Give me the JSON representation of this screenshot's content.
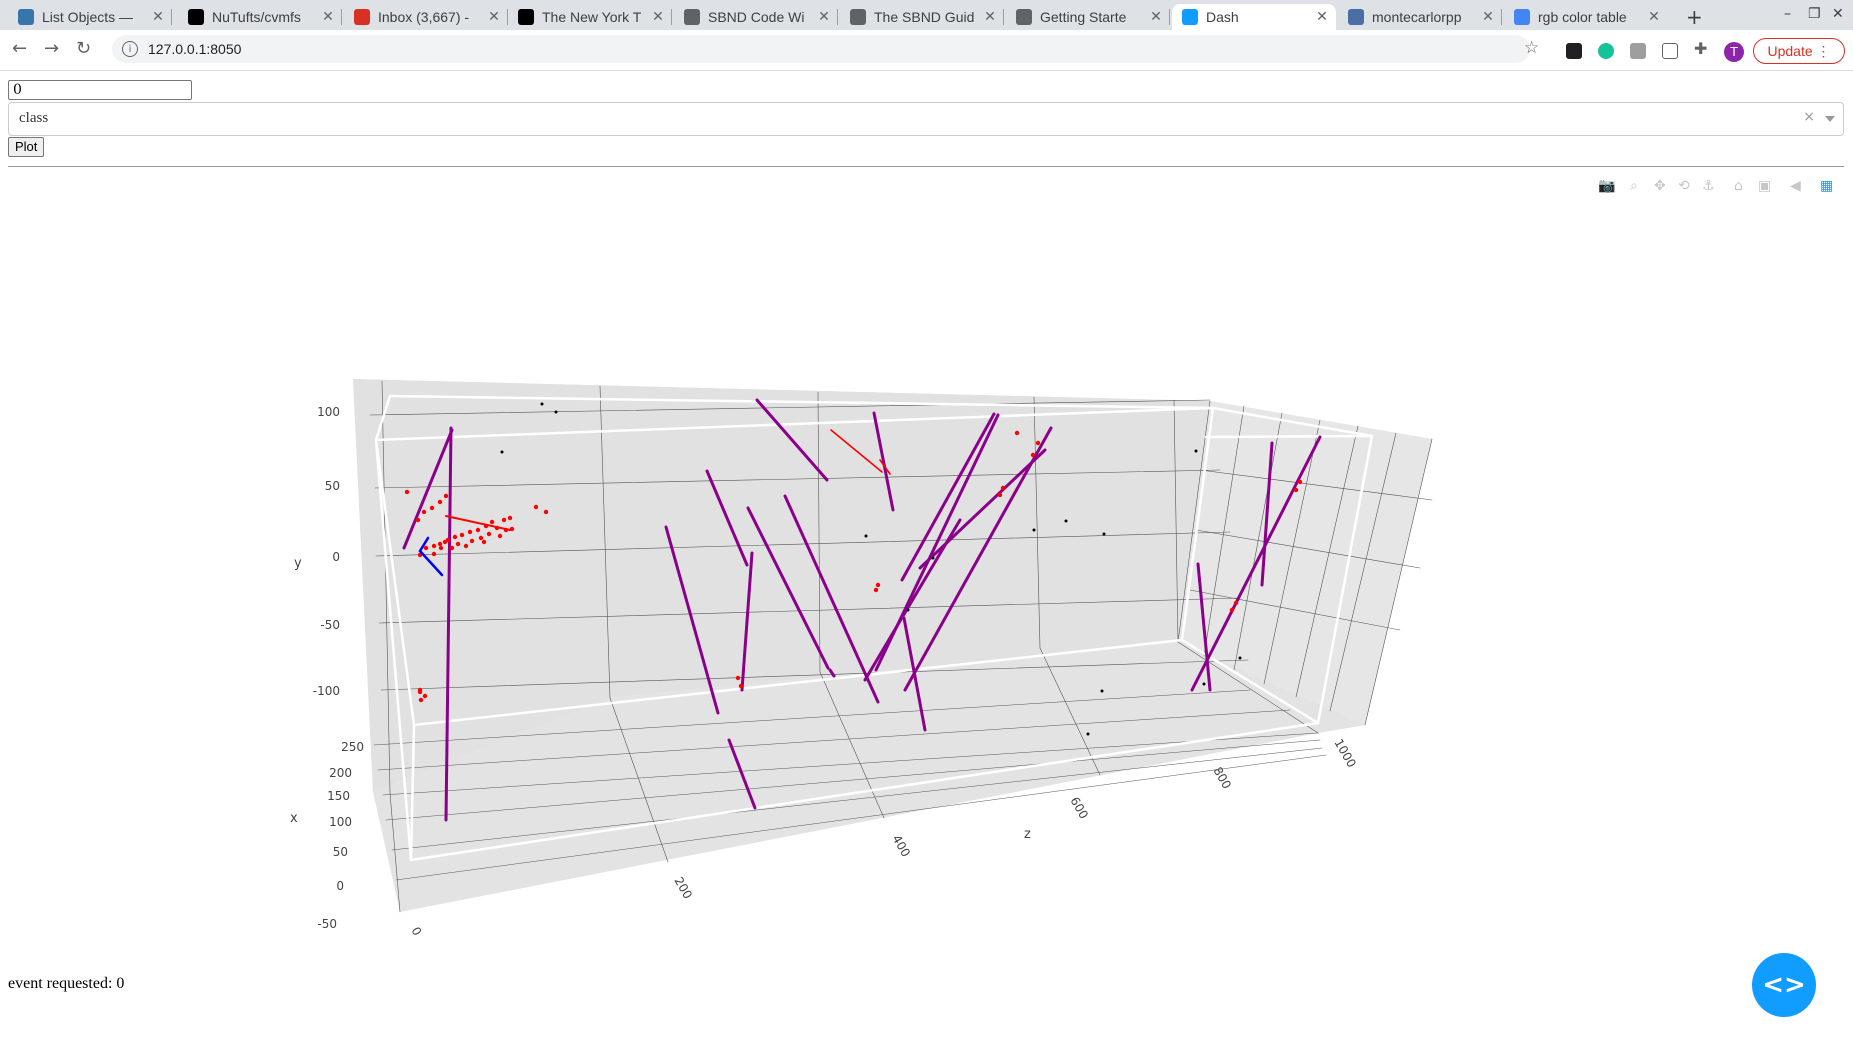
{
  "browser": {
    "tabs": [
      {
        "title": "List Objects —",
        "icon": "python-icon",
        "color": "#3776ab"
      },
      {
        "title": "NuTufts/cvmfs",
        "icon": "github-icon",
        "color": "#000000"
      },
      {
        "title": "Inbox (3,667) -",
        "icon": "gmail-icon",
        "color": "#d93025"
      },
      {
        "title": "The New York T",
        "icon": "nyt-icon",
        "color": "#000000"
      },
      {
        "title": "SBND Code Wi",
        "icon": "wiki-icon",
        "color": "#5f6368"
      },
      {
        "title": "The SBND Guid",
        "icon": "wiki-icon",
        "color": "#5f6368"
      },
      {
        "title": "Getting Starte",
        "icon": "doc-icon",
        "color": "#5f6368"
      },
      {
        "title": "Dash",
        "icon": "dash-icon",
        "color": "#119dff"
      },
      {
        "title": "montecarlorpp",
        "icon": "pdg-icon",
        "color": "#4a6fa5"
      },
      {
        "title": "rgb color table",
        "icon": "google-icon",
        "color": "#4285f4"
      }
    ],
    "url": "127.0.0.1:8050",
    "update_label": "Update",
    "avatar_letter": "T"
  },
  "controls": {
    "event_value": "0",
    "dropdown_value": "class",
    "plot_label": "Plot"
  },
  "chart_data": {
    "type": "scatter3d",
    "axes": {
      "x": {
        "label": "x",
        "ticks": [
          "-50",
          "0",
          "50",
          "100",
          "150",
          "200",
          "250"
        ],
        "range": [
          -50,
          250
        ]
      },
      "y": {
        "label": "y",
        "ticks": [
          "-100",
          "-50",
          "0",
          "50",
          "100"
        ],
        "range": [
          -120,
          120
        ]
      },
      "z": {
        "label": "z",
        "ticks": [
          "0",
          "200",
          "400",
          "600",
          "800",
          "1000"
        ],
        "range": [
          0,
          1050
        ]
      }
    },
    "series_colors": {
      "track": "#8b008b",
      "shower": "#ff0000",
      "other": "#000000",
      "direction": "#0000ff"
    }
  },
  "status_text": "event requested: 0"
}
